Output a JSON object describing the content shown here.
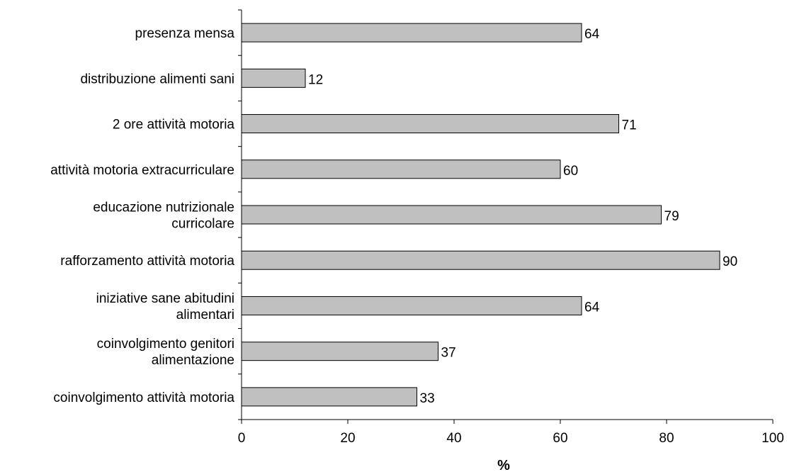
{
  "chart_data": {
    "type": "bar",
    "orientation": "horizontal",
    "categories": [
      [
        "presenza mensa"
      ],
      [
        "distribuzione alimenti sani"
      ],
      [
        "2 ore attività motoria"
      ],
      [
        "attività motoria extracurriculare"
      ],
      [
        "educazione nutrizionale",
        "curricolare"
      ],
      [
        "rafforzamento attività motoria"
      ],
      [
        "iniziative sane abitudini",
        "alimentari"
      ],
      [
        "coinvolgimento genitori",
        "alimentazione"
      ],
      [
        "coinvolgimento attività motoria"
      ]
    ],
    "values": [
      64,
      12,
      71,
      60,
      79,
      90,
      64,
      37,
      33
    ],
    "title": "",
    "xlabel": "%",
    "ylabel": "",
    "xlim": [
      0,
      100
    ],
    "xticks": [
      0,
      20,
      40,
      60,
      80,
      100
    ],
    "grid": false,
    "bar_color": "#c0c0c0",
    "bar_edge_color": "#000000"
  }
}
